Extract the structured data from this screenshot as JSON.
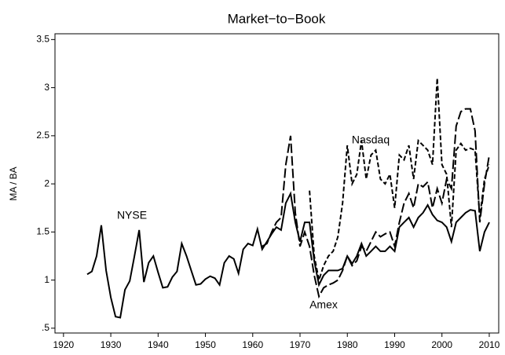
{
  "chart_data": {
    "type": "line",
    "title": "Market−to−Book",
    "y_label": "MA / BA",
    "annotations": [
      "NYSE",
      "Amex",
      "Nasdaq"
    ],
    "x": [
      1925,
      1926,
      1927,
      1928,
      1929,
      1930,
      1931,
      1932,
      1933,
      1934,
      1935,
      1936,
      1937,
      1938,
      1939,
      1940,
      1941,
      1942,
      1943,
      1944,
      1945,
      1946,
      1947,
      1948,
      1949,
      1950,
      1951,
      1952,
      1953,
      1954,
      1955,
      1956,
      1957,
      1958,
      1959,
      1960,
      1961,
      1962,
      1963,
      1964,
      1965,
      1966,
      1967,
      1968,
      1969,
      1970,
      1971,
      1972,
      1973,
      1974,
      1975,
      1976,
      1977,
      1978,
      1979,
      1980,
      1981,
      1982,
      1983,
      1984,
      1985,
      1986,
      1987,
      1988,
      1989,
      1990,
      1991,
      1992,
      1993,
      1994,
      1995,
      1996,
      1997,
      1998,
      1999,
      2000,
      2001,
      2002,
      2003,
      2004,
      2005,
      2006,
      2007,
      2008,
      2009,
      2010
    ],
    "series": [
      {
        "name": "NYSE",
        "color": "#000000",
        "dash": "solid",
        "values": [
          1.06,
          1.09,
          1.25,
          1.57,
          1.1,
          0.82,
          0.62,
          0.61,
          0.9,
          0.99,
          1.25,
          1.52,
          0.98,
          1.18,
          1.25,
          1.08,
          0.92,
          0.93,
          1.03,
          1.09,
          1.38,
          1.25,
          1.1,
          0.95,
          0.96,
          1.01,
          1.04,
          1.02,
          0.95,
          1.18,
          1.25,
          1.22,
          1.07,
          1.32,
          1.38,
          1.36,
          1.53,
          1.32,
          1.4,
          1.48,
          1.55,
          1.52,
          1.8,
          1.9,
          1.6,
          1.4,
          1.6,
          1.6,
          1.2,
          0.95,
          1.05,
          1.1,
          1.1,
          1.1,
          1.12,
          1.25,
          1.17,
          1.25,
          1.38,
          1.25,
          1.3,
          1.35,
          1.3,
          1.3,
          1.35,
          1.3,
          1.55,
          1.6,
          1.65,
          1.55,
          1.65,
          1.7,
          1.78,
          1.68,
          1.62,
          1.6,
          1.55,
          1.4,
          1.6,
          1.65,
          1.7,
          1.73,
          1.72,
          1.3,
          1.5,
          1.6
        ]
      },
      {
        "name": "Amex",
        "color": "#000000",
        "dash": "long",
        "values": [
          null,
          null,
          null,
          null,
          null,
          null,
          null,
          null,
          null,
          null,
          null,
          null,
          null,
          null,
          null,
          null,
          null,
          null,
          null,
          null,
          null,
          null,
          null,
          null,
          null,
          null,
          null,
          null,
          null,
          null,
          null,
          null,
          null,
          null,
          null,
          null,
          null,
          1.35,
          1.38,
          1.5,
          1.6,
          1.65,
          2.2,
          2.5,
          1.7,
          1.35,
          1.5,
          1.35,
          1.05,
          0.83,
          0.92,
          0.95,
          0.97,
          1.0,
          1.1,
          1.25,
          1.15,
          1.2,
          1.35,
          1.3,
          1.4,
          1.5,
          1.45,
          1.48,
          1.5,
          1.35,
          1.6,
          1.8,
          1.9,
          1.75,
          2.0,
          1.97,
          2.02,
          1.75,
          1.95,
          1.8,
          2.05,
          1.95,
          2.6,
          2.75,
          2.78,
          2.78,
          2.55,
          1.6,
          2.0,
          2.3
        ]
      },
      {
        "name": "Nasdaq",
        "color": "#000000",
        "dash": "short",
        "values": [
          null,
          null,
          null,
          null,
          null,
          null,
          null,
          null,
          null,
          null,
          null,
          null,
          null,
          null,
          null,
          null,
          null,
          null,
          null,
          null,
          null,
          null,
          null,
          null,
          null,
          null,
          null,
          null,
          null,
          null,
          null,
          null,
          null,
          null,
          null,
          null,
          null,
          null,
          null,
          null,
          null,
          null,
          null,
          null,
          null,
          null,
          null,
          1.93,
          1.25,
          1.0,
          1.15,
          1.25,
          1.3,
          1.45,
          1.8,
          2.4,
          2.0,
          2.1,
          2.45,
          2.05,
          2.3,
          2.35,
          2.05,
          2.0,
          2.1,
          1.75,
          2.3,
          2.25,
          2.4,
          2.05,
          2.45,
          2.4,
          2.35,
          2.2,
          3.1,
          2.2,
          2.1,
          1.55,
          2.35,
          2.42,
          2.35,
          2.37,
          2.35,
          1.65,
          2.05,
          2.2
        ]
      }
    ],
    "xlim": [
      1918.2,
      2012
    ],
    "ylim": [
      0.45,
      3.56
    ],
    "xticks": [
      1920,
      1930,
      1940,
      1950,
      1960,
      1970,
      1980,
      1990,
      2000,
      2010
    ],
    "yticks": [
      {
        "value": 0.5,
        "label": ".5"
      },
      1,
      1.5,
      2,
      2.5,
      3,
      3.5
    ]
  }
}
